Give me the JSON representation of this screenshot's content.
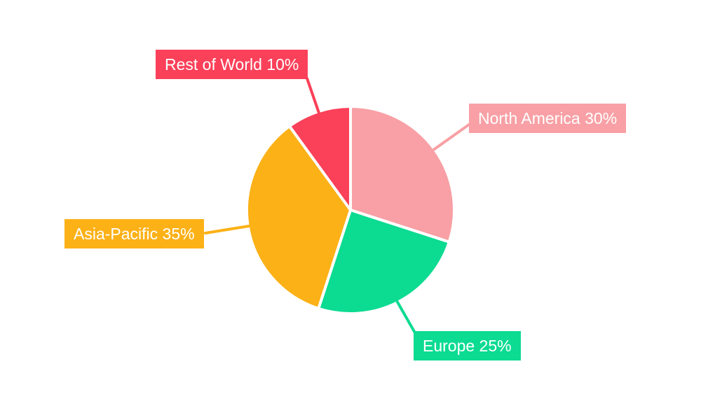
{
  "chart_data": {
    "type": "pie",
    "title": "",
    "unit": "%",
    "direction": "clockwise",
    "start_angle_deg": 0,
    "background": "#ffffff",
    "label_text_color": "#ffffff",
    "separator_color": "#ffffff",
    "slices": [
      {
        "id": "north-america",
        "label": "North America",
        "value": 30,
        "display": "North America 30%",
        "color": "#F8A0A5"
      },
      {
        "id": "europe",
        "label": "Europe",
        "value": 25,
        "display": "Europe 25%",
        "color": "#0CDB92"
      },
      {
        "id": "asia-pacific",
        "label": "Asia-Pacific",
        "value": 35,
        "display": "Asia-Pacific 35%",
        "color": "#FCB117"
      },
      {
        "id": "rest-of-world",
        "label": "Rest of World",
        "value": 10,
        "display": "Rest of World 10%",
        "color": "#FB4059"
      }
    ]
  }
}
